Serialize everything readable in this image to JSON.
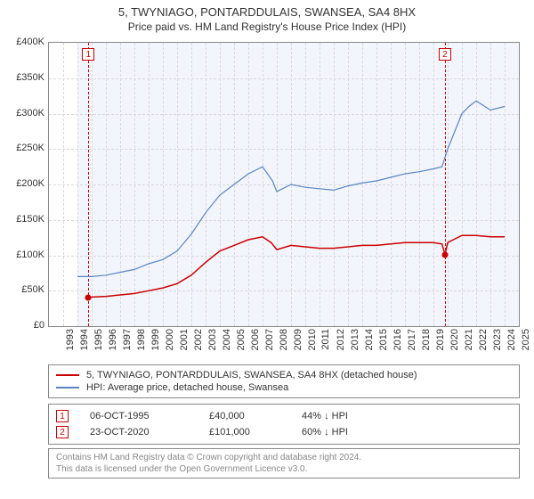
{
  "title_line1": "5, TWYNIAGO, PONTARDDULAIS, SWANSEA, SA4 8HX",
  "title_line2": "Price paid vs. HM Land Registry's House Price Index (HPI)",
  "chart": {
    "type": "line",
    "background_color": "#ffffff",
    "shaded_background_color": "#f2f5fc",
    "plot_border_color": "#888888",
    "grid_color": "#d9d9d9",
    "xlim": [
      1993,
      2026
    ],
    "x_ticks": [
      1993,
      1994,
      1995,
      1996,
      1997,
      1998,
      1999,
      2000,
      2001,
      2002,
      2003,
      2004,
      2005,
      2006,
      2007,
      2008,
      2009,
      2010,
      2011,
      2012,
      2013,
      2014,
      2015,
      2016,
      2017,
      2018,
      2019,
      2020,
      2021,
      2022,
      2023,
      2024,
      2025
    ],
    "ylim": [
      0,
      400000
    ],
    "y_ticks": [
      0,
      50000,
      100000,
      150000,
      200000,
      250000,
      300000,
      350000,
      400000
    ],
    "y_tick_labels": [
      "£0",
      "£50K",
      "£100K",
      "£150K",
      "£200K",
      "£250K",
      "£300K",
      "£350K",
      "£400K"
    ],
    "series": [
      {
        "name": "price_paid",
        "label": "5, TWYNIAGO, PONTARDDULAIS, SWANSEA, SA4 8HX (detached house)",
        "color": "#cc0000",
        "line_width": 1.5,
        "data": [
          [
            1995.77,
            40000
          ],
          [
            1996,
            41000
          ],
          [
            1997,
            42000
          ],
          [
            1998,
            44000
          ],
          [
            1999,
            46000
          ],
          [
            2000,
            50000
          ],
          [
            2001,
            54000
          ],
          [
            2002,
            60000
          ],
          [
            2003,
            72000
          ],
          [
            2004,
            90000
          ],
          [
            2005,
            106000
          ],
          [
            2006,
            114000
          ],
          [
            2007,
            122000
          ],
          [
            2008,
            126000
          ],
          [
            2008.6,
            118000
          ],
          [
            2009,
            108000
          ],
          [
            2010,
            114000
          ],
          [
            2011,
            112000
          ],
          [
            2012,
            110000
          ],
          [
            2013,
            110000
          ],
          [
            2014,
            112000
          ],
          [
            2015,
            114000
          ],
          [
            2016,
            114000
          ],
          [
            2017,
            116000
          ],
          [
            2018,
            118000
          ],
          [
            2019,
            118000
          ],
          [
            2020,
            118000
          ],
          [
            2020.6,
            116000
          ],
          [
            2020.81,
            101000
          ],
          [
            2021,
            118000
          ],
          [
            2022,
            128000
          ],
          [
            2023,
            128000
          ],
          [
            2024,
            126000
          ],
          [
            2025,
            126000
          ]
        ]
      },
      {
        "name": "hpi",
        "label": "HPI: Average price, detached house, Swansea",
        "color": "#5b84c4",
        "line_width": 1.2,
        "data": [
          [
            1995,
            70000
          ],
          [
            1996,
            70000
          ],
          [
            1997,
            72000
          ],
          [
            1998,
            76000
          ],
          [
            1999,
            80000
          ],
          [
            2000,
            88000
          ],
          [
            2001,
            94000
          ],
          [
            2002,
            106000
          ],
          [
            2003,
            130000
          ],
          [
            2004,
            160000
          ],
          [
            2005,
            185000
          ],
          [
            2006,
            200000
          ],
          [
            2007,
            215000
          ],
          [
            2008,
            225000
          ],
          [
            2008.7,
            205000
          ],
          [
            2009,
            190000
          ],
          [
            2010,
            200000
          ],
          [
            2011,
            196000
          ],
          [
            2012,
            194000
          ],
          [
            2013,
            192000
          ],
          [
            2014,
            198000
          ],
          [
            2015,
            202000
          ],
          [
            2016,
            205000
          ],
          [
            2017,
            210000
          ],
          [
            2018,
            215000
          ],
          [
            2019,
            218000
          ],
          [
            2020,
            222000
          ],
          [
            2020.6,
            225000
          ],
          [
            2021,
            250000
          ],
          [
            2022,
            300000
          ],
          [
            2022.5,
            310000
          ],
          [
            2023,
            318000
          ],
          [
            2024,
            305000
          ],
          [
            2025,
            310000
          ]
        ]
      }
    ],
    "event_markers": [
      {
        "n": "1",
        "year": 1995.77,
        "color": "#cc0000"
      },
      {
        "n": "2",
        "year": 2020.81,
        "color": "#cc0000"
      }
    ],
    "sale_points": [
      {
        "year": 1995.77,
        "value": 40000,
        "color": "#cc0000"
      },
      {
        "year": 2020.81,
        "value": 101000,
        "color": "#cc0000"
      }
    ],
    "shaded_start_year": 1995.0
  },
  "legend": {
    "items": [
      {
        "color": "#cc0000",
        "label": "5, TWYNIAGO, PONTARDDULAIS, SWANSEA, SA4 8HX (detached house)"
      },
      {
        "color": "#5b84c4",
        "label": "HPI: Average price, detached house, Swansea"
      }
    ]
  },
  "sales_table": {
    "rows": [
      {
        "n": "1",
        "color": "#cc0000",
        "date": "06-OCT-1995",
        "price": "£40,000",
        "pct": "44% ↓ HPI"
      },
      {
        "n": "2",
        "color": "#cc0000",
        "date": "23-OCT-2020",
        "price": "£101,000",
        "pct": "60% ↓ HPI"
      }
    ]
  },
  "notes": {
    "line1": "Contains HM Land Registry data © Crown copyright and database right 2024.",
    "line2": "This data is licensed under the Open Government Licence v3.0."
  },
  "colors": {
    "text": "#333333",
    "note_text": "#888888"
  }
}
